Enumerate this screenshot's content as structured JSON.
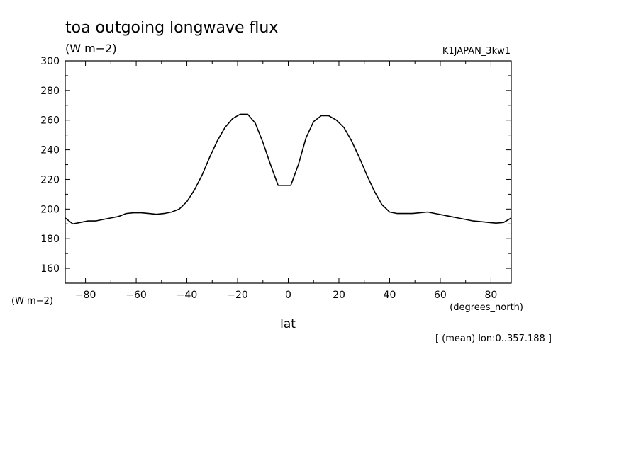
{
  "chart_data": {
    "type": "line",
    "title": "toa outgoing longwave flux",
    "units": "(W m−2)",
    "dataset": "K1JAPAN_3kw1",
    "ylabel": "(W m−2)",
    "xlabel": "lat",
    "xunits": "(degrees_north)",
    "note": "[ (mean) lon:0..357.188 ]",
    "xlim": [
      -88,
      88
    ],
    "ylim": [
      150,
      300
    ],
    "xticks": [
      -80,
      -60,
      -40,
      -20,
      0,
      20,
      40,
      60,
      80
    ],
    "xtick_labels": [
      "−80",
      "−60",
      "−40",
      "−20",
      "0",
      "20",
      "40",
      "60",
      "80"
    ],
    "yticks": [
      160,
      180,
      200,
      220,
      240,
      260,
      280,
      300
    ],
    "grid": false,
    "series": [
      {
        "x": [
          -88,
          -85,
          -82,
          -79,
          -76,
          -73,
          -70,
          -67,
          -64,
          -61,
          -58,
          -55,
          -52,
          -49,
          -46,
          -43,
          -40,
          -37,
          -34,
          -31,
          -28,
          -25,
          -22,
          -19,
          -16,
          -13,
          -10,
          -7,
          -4,
          -1,
          1,
          4,
          7,
          10,
          13,
          16,
          19,
          22,
          25,
          28,
          31,
          34,
          37,
          40,
          43,
          46,
          49,
          52,
          55,
          58,
          61,
          64,
          67,
          70,
          73,
          76,
          79,
          82,
          85,
          88
        ],
        "y": [
          194,
          190,
          191,
          192,
          192,
          193,
          194,
          195,
          197,
          197.5,
          197.5,
          197,
          196.5,
          197,
          198,
          200,
          205,
          213,
          223,
          235,
          246,
          255,
          261,
          264,
          264,
          258,
          245,
          230,
          216,
          216,
          216,
          230,
          248,
          259,
          263,
          263,
          260,
          255,
          246,
          235,
          223,
          212,
          203,
          198,
          197,
          197,
          197,
          197.5,
          198,
          197,
          196,
          195,
          194,
          193,
          192,
          191.5,
          191,
          190.5,
          191,
          194
        ]
      }
    ]
  }
}
